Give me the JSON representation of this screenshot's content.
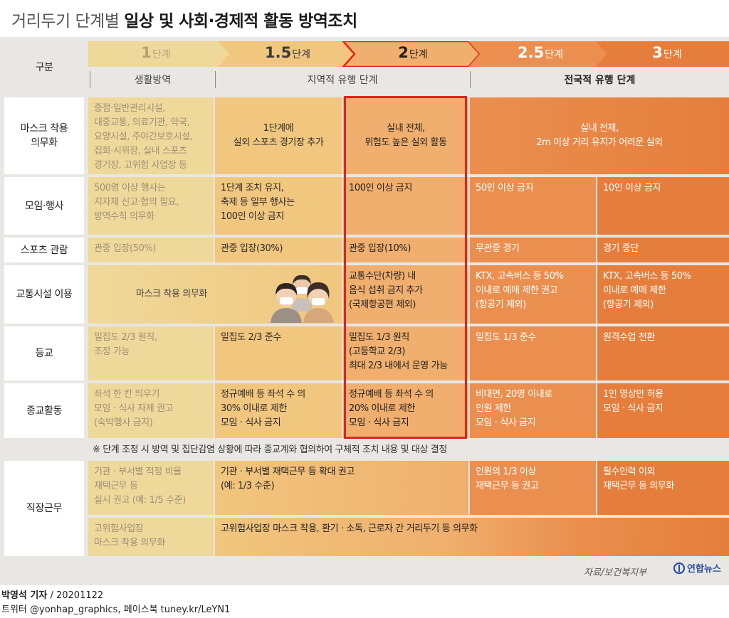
{
  "title": {
    "light": "거리두기 단계별 ",
    "bold": "일상 및 사회·경제적 활동 방역조치"
  },
  "header": {
    "label": "구분",
    "levels": [
      {
        "num": "1",
        "unit": "단계"
      },
      {
        "num": "1.5",
        "unit": "단계"
      },
      {
        "num": "2",
        "unit": "단계"
      },
      {
        "num": "2.5",
        "unit": "단계"
      },
      {
        "num": "3",
        "unit": "단계"
      }
    ],
    "phases": [
      "생활방역",
      "지역적 유행 단계",
      "전국적 유행 단계"
    ]
  },
  "rows": {
    "mask": {
      "label": "마스크 착용\n의무화",
      "l1": "중점·일반관리시설,\n대중교통, 의료기관, 약국,\n요양시설, 주야간보호시설,\n집회·시위장, 실내 스포츠\n경기장, 고위험 사업장 등",
      "l15": "1단계에\n실외 스포츠 경기장 추가",
      "l2": "실내 전체,\n위험도 높은 실외 활동",
      "l25_3": "실내 전체,\n2m 이상 거리 유지가 어려운 실외"
    },
    "event": {
      "label": "모임·행사",
      "l1": "500명 이상 행사는\n지자체 신고·협의 필요,\n방역수칙 의무화",
      "l15": "1단계 조치 유지,\n축제 등 일부 행사는\n100인 이상 금지",
      "l2": "100인 이상 금지",
      "l25": "50인 이상 금지",
      "l3": "10인 이상 금지"
    },
    "sports": {
      "label": "스포츠 관람",
      "l1": "관중 입장(50%)",
      "l15": "관중 입장(30%)",
      "l2": "관중 입장(10%)",
      "l25": "무관중 경기",
      "l3": "경기 중단"
    },
    "transport": {
      "label": "교통시설 이용",
      "l1_15": "마스크 착용 의무화",
      "l2": "교통수단(차량) 내\n음식 섭취 금지 추가\n(국제항공편 제외)",
      "l25": "KTX, 고속버스 등 50%\n이내로 예매 제한 권고\n(항공기 제외)",
      "l3": "KTX, 고속버스 등 50%\n이내로 예매 제한\n(항공기 제외)"
    },
    "school": {
      "label": "등교",
      "l1": "밀집도 2/3 원칙,\n조정 가능",
      "l15": "밀집도 2/3 준수",
      "l2": "밀집도 1/3 원칙\n(고등학교 2/3)\n최대 2/3 내에서 운영 가능",
      "l25": "밀집도 1/3 준수",
      "l3": "원격수업 전환"
    },
    "religion": {
      "label": "종교활동",
      "l1": "좌석 한 칸 띄우기\n모임 · 식사 자제 권고\n(숙박행사 금지)",
      "l15": "정규예배 등 좌석 수 의\n30% 이내로 제한\n모임 · 식사 금지",
      "l2": "정규예배 등 좌석 수 의\n20% 이내로 제한\n모임 · 식사 금지",
      "l25": "비대면, 20명 이내로\n인원 제한\n모임 · 식사 금지",
      "l3": "1인 영상만 허용\n모임 · 식사 금지"
    },
    "note": "※ 단계 조정 시 방역 및 집단감염 상황에 따라 종교계와 협의하여 구체적 조치 내용 및 대상 결정",
    "work": {
      "label": "직장근무",
      "l1": "기관 · 부서별 적정 비율\n재택근무 등\n실시 권고 (예: 1/5 수준)",
      "l15_2": "기관 · 부서별 재택근무 등 확대 권고\n(예: 1/3 수준)",
      "l25": "인원의 1/3 이상\n재택근무 등 권고",
      "l3": "필수인력 이외\n재택근무 등 의무화",
      "l1_b": "고위험사업장\n마스크 착용 의무화",
      "rest_b": "고위험사업장 마스크 착용, 환기 · 소독, 근로자 간 거리두기 등 의무화"
    }
  },
  "footer": {
    "source": "자료/보건복지부",
    "logo": "연합뉴스",
    "reporter": "박영석 기자",
    "date": "/ 20201122",
    "sns": "트위터 @yonhap_graphics, 페이스북 tuney.kr/LeYN1"
  },
  "colors": {
    "lvl1": "#efd99a",
    "lvl15": "#f1c67e",
    "lvl2": "#f0af6e",
    "lvl25": "#ea8f4f",
    "lvl3": "#e57e3c",
    "highlight": "#e2231a"
  }
}
